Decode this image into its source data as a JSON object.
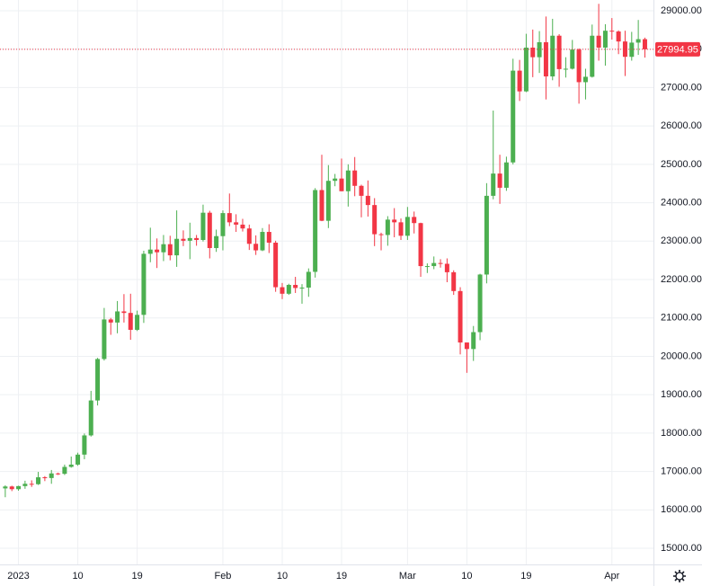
{
  "chart_data": {
    "type": "candlestick",
    "x": [
      -2,
      -1,
      0,
      1,
      2,
      3,
      4,
      5,
      6,
      7,
      8,
      9,
      10,
      11,
      12,
      13,
      14,
      15,
      16,
      17,
      18,
      19,
      20,
      21,
      22,
      23,
      24,
      25,
      26,
      27,
      28,
      29,
      30,
      31,
      32,
      33,
      34,
      35,
      36,
      37,
      38,
      39,
      40,
      41,
      42,
      43,
      44,
      45,
      46,
      47,
      48,
      49,
      50,
      51,
      52,
      53,
      54,
      55,
      56,
      57,
      58,
      59,
      60,
      61,
      62,
      63,
      64,
      65,
      66,
      67,
      68,
      69,
      70,
      71,
      72,
      73,
      74,
      75,
      76,
      77,
      78,
      79,
      80,
      81,
      82,
      83,
      84,
      85,
      86,
      87,
      88,
      89,
      90,
      91,
      92,
      93,
      94,
      95
    ],
    "open": [
      16560,
      16610,
      16540,
      16620,
      16680,
      16670,
      16850,
      16830,
      16950,
      16940,
      17120,
      17180,
      17440,
      17940,
      18850,
      19930,
      20960,
      20880,
      21170,
      21130,
      20690,
      21080,
      22670,
      22780,
      22710,
      22920,
      22630,
      23060,
      23010,
      23080,
      23030,
      23740,
      22820,
      23130,
      23730,
      23490,
      23430,
      23330,
      22930,
      22760,
      23240,
      22960,
      21800,
      21630,
      21860,
      21780,
      21790,
      22200,
      24330,
      23530,
      24570,
      24630,
      24300,
      24840,
      24440,
      24180,
      23940,
      23180,
      23160,
      23560,
      23490,
      23140,
      23630,
      23470,
      22350,
      22350,
      22430,
      22410,
      22190,
      21700,
      20360,
      20190,
      20630,
      22130,
      24180,
      24760,
      24390,
      25050,
      27440,
      26900,
      28040,
      27790,
      28180,
      27290,
      28350,
      27480,
      27490,
      27990,
      27140,
      27280,
      28350,
      28040,
      28480,
      28460,
      28200,
      27800,
      28170,
      28260
    ],
    "high": [
      16640,
      16630,
      16630,
      16760,
      16770,
      16990,
      16880,
      17040,
      16970,
      17180,
      17390,
      17490,
      17990,
      19100,
      19960,
      21260,
      21000,
      21440,
      21620,
      21630,
      21190,
      22750,
      23350,
      23070,
      23160,
      23140,
      23800,
      23280,
      23480,
      23160,
      23950,
      23790,
      23300,
      23800,
      24240,
      23700,
      23580,
      23430,
      23150,
      23340,
      23440,
      23010,
      21910,
      21890,
      22070,
      21880,
      22290,
      24380,
      25250,
      24980,
      24750,
      25150,
      25000,
      25190,
      24470,
      24580,
      24120,
      23220,
      23650,
      23860,
      23590,
      23890,
      23770,
      23480,
      22420,
      22600,
      22530,
      22550,
      22240,
      21800,
      20360,
      20790,
      22150,
      24510,
      26400,
      25250,
      25200,
      27750,
      27720,
      28400,
      28510,
      28470,
      28850,
      28790,
      28390,
      27790,
      28240,
      28020,
      27490,
      28640,
      29180,
      28650,
      28810,
      28490,
      28480,
      28450,
      28760,
      28300
    ],
    "low": [
      16330,
      16490,
      16500,
      16550,
      16600,
      16650,
      16750,
      16680,
      16910,
      16910,
      17100,
      17150,
      17320,
      17910,
      18720,
      19890,
      20560,
      20600,
      20880,
      20430,
      20660,
      20870,
      22450,
      22300,
      22480,
      22500,
      22330,
      22870,
      22530,
      22880,
      22990,
      22550,
      22720,
      22760,
      23390,
      23240,
      23250,
      22770,
      22640,
      22740,
      22690,
      21680,
      21490,
      21600,
      21650,
      21370,
      21550,
      22050,
      23520,
      23340,
      24430,
      24300,
      23900,
      24170,
      23620,
      23640,
      22870,
      22760,
      22880,
      23100,
      23030,
      23030,
      23200,
      22070,
      22170,
      22270,
      22310,
      21930,
      21600,
      20050,
      19570,
      19880,
      20420,
      21900,
      24090,
      23970,
      24310,
      25000,
      26650,
      26880,
      27270,
      27380,
      26690,
      27190,
      27020,
      27260,
      27470,
      26580,
      26690,
      27260,
      27700,
      27570,
      28250,
      27870,
      27300,
      27700,
      27850,
      27780
    ],
    "close": [
      16610,
      16540,
      16620,
      16680,
      16670,
      16850,
      16830,
      16950,
      16940,
      17120,
      17180,
      17440,
      17940,
      18850,
      19930,
      20960,
      20880,
      21170,
      21130,
      20690,
      21080,
      22670,
      22780,
      22710,
      22920,
      22630,
      23060,
      23010,
      23080,
      23030,
      23740,
      22820,
      23130,
      23730,
      23490,
      23430,
      23330,
      22930,
      22760,
      23240,
      22960,
      21800,
      21630,
      21860,
      21780,
      21790,
      22200,
      24330,
      23530,
      24570,
      24630,
      24300,
      24840,
      24440,
      24180,
      23940,
      23180,
      23160,
      23560,
      23490,
      23140,
      23630,
      23470,
      22350,
      22350,
      22430,
      22410,
      22190,
      21700,
      20360,
      20190,
      20630,
      22130,
      24180,
      24760,
      24390,
      25050,
      27440,
      26900,
      28040,
      27790,
      28180,
      27290,
      28350,
      27480,
      27490,
      27990,
      27140,
      27280,
      28350,
      28040,
      28480,
      28460,
      28200,
      27800,
      28170,
      28260,
      27994.95
    ],
    "up_color": "#4caf50",
    "down_color": "#f23645",
    "last_price": 27994.95,
    "xlim": [
      -2.8,
      96.3
    ],
    "ylim": [
      14580,
      29280
    ],
    "xticks": [
      {
        "value": 0,
        "label": "2023"
      },
      {
        "value": 9,
        "label": "10"
      },
      {
        "value": 18,
        "label": "19"
      },
      {
        "value": 31,
        "label": "Feb"
      },
      {
        "value": 40,
        "label": "10"
      },
      {
        "value": 49,
        "label": "19"
      },
      {
        "value": 59,
        "label": "Mar"
      },
      {
        "value": 68,
        "label": "10"
      },
      {
        "value": 77,
        "label": "19"
      },
      {
        "value": 90,
        "label": "Apr"
      }
    ],
    "yticks": [
      {
        "value": 15000,
        "label": "15000.00"
      },
      {
        "value": 16000,
        "label": "16000.00"
      },
      {
        "value": 17000,
        "label": "17000.00"
      },
      {
        "value": 18000,
        "label": "18000.00"
      },
      {
        "value": 19000,
        "label": "19000.00"
      },
      {
        "value": 20000,
        "label": "20000.00"
      },
      {
        "value": 21000,
        "label": "21000.00"
      },
      {
        "value": 22000,
        "label": "22000.00"
      },
      {
        "value": 23000,
        "label": "23000.00"
      },
      {
        "value": 24000,
        "label": "24000.00"
      },
      {
        "value": 25000,
        "label": "25000.00"
      },
      {
        "value": 26000,
        "label": "26000.00"
      },
      {
        "value": 27000,
        "label": "27000.00"
      },
      {
        "value": 28000,
        "label": "28000.00"
      },
      {
        "value": 29000,
        "label": "29000.00"
      }
    ],
    "grid": true
  }
}
